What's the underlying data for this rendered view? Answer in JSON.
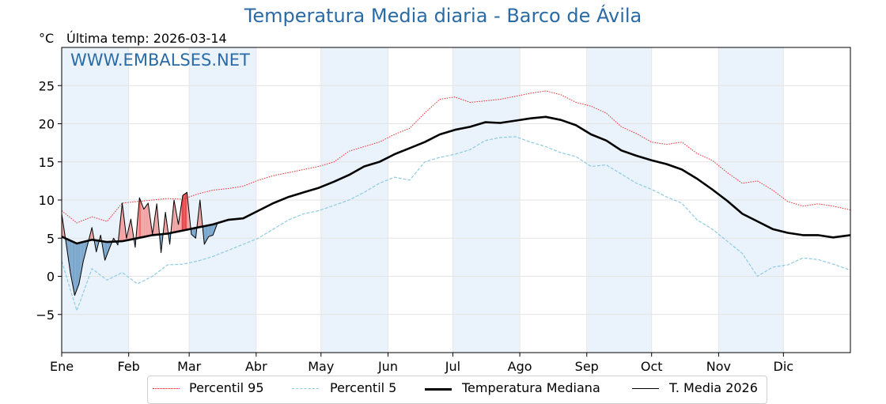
{
  "header": {
    "title": "Temperatura Media diaria - Barco de Ávila",
    "unit": "°C",
    "last_temp_label": "Última temp:",
    "last_temp_date": "2026-03-14",
    "watermark": "WWW.EMBALSES.NET"
  },
  "legend": {
    "items": [
      {
        "label": "Percentil 95",
        "style": "dotted-red"
      },
      {
        "label": "Percentil 5",
        "style": "dashed-lightblue"
      },
      {
        "label": "Temperatura Mediana",
        "style": "thick-black"
      },
      {
        "label": "T. Media 2026",
        "style": "thin-black"
      }
    ]
  },
  "chart_data": {
    "type": "line",
    "title": "Temperatura Media diaria - Barco de Ávila",
    "ylabel": "°C",
    "xlabel": "",
    "x_unit": "day of year",
    "xlim": [
      1,
      366
    ],
    "ylim": [
      -10,
      30
    ],
    "yticks": [
      -5,
      0,
      5,
      10,
      15,
      20,
      25
    ],
    "ytick_labels": [
      "−5",
      "0",
      "5",
      "10",
      "15",
      "20",
      "25"
    ],
    "months": [
      {
        "label": "Ene",
        "day": 1
      },
      {
        "label": "Feb",
        "day": 32
      },
      {
        "label": "Mar",
        "day": 60
      },
      {
        "label": "Abr",
        "day": 91
      },
      {
        "label": "May",
        "day": 121
      },
      {
        "label": "Jun",
        "day": 152
      },
      {
        "label": "Jul",
        "day": 182
      },
      {
        "label": "Ago",
        "day": 213
      },
      {
        "label": "Sep",
        "day": 244
      },
      {
        "label": "Oct",
        "day": 274
      },
      {
        "label": "Nov",
        "day": 305
      },
      {
        "label": "Dic",
        "day": 335
      }
    ],
    "grid": true,
    "legend_position": "bottom",
    "colors": {
      "p95": "#e8282a",
      "p5": "#8ecbe0",
      "median": "#000000",
      "current": "#000000",
      "above_fill": "#f0a2a2",
      "above_fill_strong": "#e8464a",
      "below_fill": "#7aa6cc",
      "below_fill_strong": "#1f4f85",
      "band": "#eaf3fb",
      "title": "#2a6ba6"
    },
    "series": [
      {
        "name": "Percentil 95",
        "key": "p95",
        "x": [
          1,
          8,
          15,
          22,
          29,
          36,
          43,
          50,
          57,
          64,
          71,
          78,
          85,
          92,
          99,
          106,
          113,
          120,
          127,
          134,
          141,
          148,
          155,
          162,
          169,
          176,
          183,
          190,
          197,
          204,
          211,
          218,
          225,
          232,
          239,
          246,
          253,
          260,
          267,
          274,
          281,
          288,
          295,
          302,
          309,
          316,
          323,
          330,
          337,
          344,
          351,
          358,
          366
        ],
        "y": [
          8.6,
          7.0,
          7.8,
          7.2,
          9.6,
          9.8,
          10.0,
          10.2,
          10.1,
          10.8,
          11.3,
          11.5,
          11.8,
          12.6,
          13.2,
          13.6,
          14.0,
          14.4,
          15.0,
          16.4,
          17.0,
          17.6,
          18.6,
          19.4,
          21.4,
          23.2,
          23.5,
          22.8,
          23.0,
          23.2,
          23.6,
          24.0,
          24.3,
          23.8,
          22.8,
          22.3,
          21.4,
          19.6,
          18.7,
          17.6,
          17.3,
          17.6,
          16.1,
          15.2,
          13.6,
          12.2,
          12.5,
          11.3,
          9.8,
          9.2,
          9.5,
          9.2,
          8.7
        ]
      },
      {
        "name": "Percentil 5",
        "key": "p5",
        "x": [
          1,
          8,
          15,
          22,
          29,
          36,
          43,
          50,
          57,
          64,
          71,
          78,
          85,
          92,
          99,
          106,
          113,
          120,
          127,
          134,
          141,
          148,
          155,
          162,
          169,
          176,
          183,
          190,
          197,
          204,
          211,
          218,
          225,
          232,
          239,
          246,
          253,
          260,
          267,
          274,
          281,
          288,
          295,
          302,
          309,
          316,
          323,
          330,
          337,
          344,
          351,
          358,
          366
        ],
        "y": [
          2.0,
          -4.5,
          1.0,
          -0.5,
          0.5,
          -1.0,
          0.0,
          1.5,
          1.6,
          2.0,
          2.6,
          3.4,
          4.2,
          5.0,
          6.2,
          7.4,
          8.2,
          8.6,
          9.3,
          10.0,
          11.0,
          12.2,
          13.0,
          12.6,
          15.0,
          15.6,
          16.0,
          16.6,
          17.8,
          18.2,
          18.3,
          17.6,
          17.0,
          16.2,
          15.7,
          14.4,
          14.6,
          13.4,
          12.2,
          11.4,
          10.4,
          9.6,
          7.4,
          6.2,
          4.6,
          3.0,
          0.0,
          1.2,
          1.5,
          2.4,
          2.2,
          1.6,
          0.8
        ]
      },
      {
        "name": "Temperatura Mediana",
        "key": "median",
        "x": [
          1,
          8,
          15,
          22,
          29,
          36,
          43,
          50,
          57,
          64,
          71,
          78,
          85,
          92,
          99,
          106,
          113,
          120,
          127,
          134,
          141,
          148,
          155,
          162,
          169,
          176,
          183,
          190,
          197,
          204,
          211,
          218,
          225,
          232,
          239,
          246,
          253,
          260,
          267,
          274,
          281,
          288,
          295,
          302,
          309,
          316,
          323,
          330,
          337,
          344,
          351,
          358,
          366
        ],
        "y": [
          5.2,
          4.3,
          4.8,
          4.5,
          4.6,
          5.0,
          5.4,
          5.6,
          6.0,
          6.4,
          6.8,
          7.4,
          7.6,
          8.6,
          9.6,
          10.4,
          11.0,
          11.6,
          12.4,
          13.3,
          14.4,
          15.0,
          16.0,
          16.8,
          17.6,
          18.6,
          19.2,
          19.6,
          20.2,
          20.1,
          20.4,
          20.7,
          20.9,
          20.5,
          19.8,
          18.6,
          17.8,
          16.5,
          15.8,
          15.2,
          14.7,
          14.0,
          12.8,
          11.4,
          9.9,
          8.2,
          7.2,
          6.2,
          5.7,
          5.4,
          5.4,
          5.1,
          5.4
        ]
      },
      {
        "name": "T. Media 2026",
        "key": "current",
        "x": [
          1,
          3,
          5,
          7,
          9,
          11,
          13,
          15,
          17,
          19,
          21,
          23,
          25,
          27,
          29,
          31,
          33,
          35,
          37,
          39,
          41,
          43,
          45,
          47,
          49,
          51,
          53,
          55,
          57,
          59,
          61,
          63,
          65,
          67,
          69,
          71,
          73
        ],
        "y": [
          8.2,
          4.4,
          0.5,
          -2.5,
          -1.0,
          2.0,
          4.2,
          6.4,
          3.2,
          5.4,
          2.1,
          3.6,
          5.0,
          4.1,
          9.6,
          5.0,
          7.5,
          3.8,
          10.3,
          8.8,
          9.6,
          5.5,
          9.5,
          3.1,
          8.4,
          4.2,
          10.0,
          6.8,
          10.6,
          11.0,
          5.5,
          5.0,
          10.0,
          4.2,
          5.2,
          5.4,
          6.9
        ]
      }
    ]
  }
}
